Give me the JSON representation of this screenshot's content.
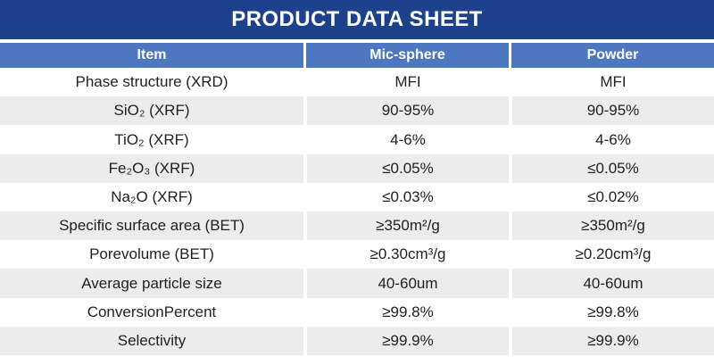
{
  "title": "PRODUCT DATA SHEET",
  "colors": {
    "title_bar_bg": "#1d428b",
    "header_bg": "#4d78c0",
    "row_bg": "#ffffff",
    "row_alt_bg": "#ececec",
    "title_text": "#ffffff",
    "header_text": "#ffffff",
    "body_text": "#1f1f1f"
  },
  "table": {
    "columns": [
      "Item",
      "Mic-sphere",
      "Powder"
    ],
    "rows": [
      {
        "item": "Phase structure (XRD)",
        "mic_sphere": "MFI",
        "powder": "MFI"
      },
      {
        "item": "SiO₂ (XRF)",
        "mic_sphere": "90-95%",
        "powder": "90-95%"
      },
      {
        "item": "TiO₂ (XRF)",
        "mic_sphere": "4-6%",
        "powder": "4-6%"
      },
      {
        "item": "Fe₂O₃ (XRF)",
        "mic_sphere": "≤0.05%",
        "powder": "≤0.05%"
      },
      {
        "item": "Na₂O (XRF)",
        "mic_sphere": "≤0.03%",
        "powder": "≤0.02%"
      },
      {
        "item": "Specific surface area (BET)",
        "mic_sphere": "≥350m²/g",
        "powder": "≥350m²/g"
      },
      {
        "item": "Porevolume (BET)",
        "mic_sphere": "≥0.30cm³/g",
        "powder": "≥0.20cm³/g"
      },
      {
        "item": "Average particle size",
        "mic_sphere": "40-60um",
        "powder": "40-60um"
      },
      {
        "item": "ConversionPercent",
        "mic_sphere": "≥99.8%",
        "powder": "≥99.8%"
      },
      {
        "item": "Selectivity",
        "mic_sphere": "≥99.9%",
        "powder": "≥99.9%"
      }
    ]
  }
}
